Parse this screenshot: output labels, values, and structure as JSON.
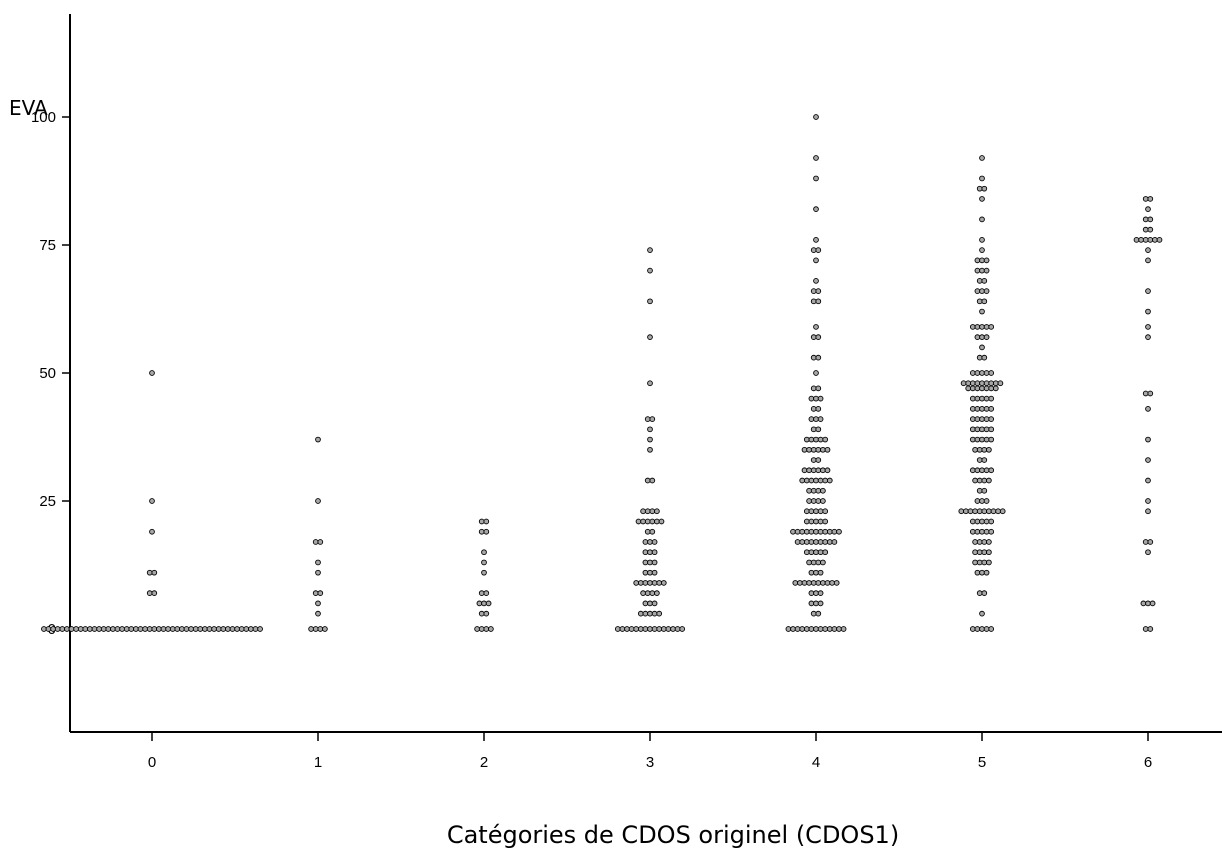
{
  "chart_data": {
    "type": "scatter",
    "subtype": "dot-plot",
    "title": "",
    "xlabel": "Catégories de CDOS originel (CDOS1)",
    "ylabel": "EVA",
    "categories": [
      "0",
      "1",
      "2",
      "3",
      "4",
      "5",
      "6"
    ],
    "x_ticks": [
      "0",
      "1",
      "2",
      "3",
      "4",
      "5",
      "6"
    ],
    "y_ticks": [
      "0",
      "25",
      "50",
      "75",
      "100"
    ],
    "xlim": [
      -0.5,
      6.5
    ],
    "ylim": [
      -20,
      120
    ],
    "grid": false,
    "legend": "none",
    "marker_color": "#a8a8a8",
    "marker_edge": "#000000",
    "points": [
      {
        "category": 0,
        "values": [
          0,
          0,
          0,
          0,
          0,
          0,
          0,
          0,
          0,
          0,
          0,
          0,
          0,
          0,
          0,
          0,
          0,
          0,
          0,
          0,
          0,
          0,
          0,
          0,
          0,
          0,
          0,
          0,
          0,
          0,
          0,
          0,
          0,
          0,
          0,
          0,
          0,
          0,
          0,
          0,
          0,
          0,
          0,
          0,
          0,
          0,
          0,
          0,
          7,
          7,
          11,
          11,
          19,
          25,
          50
        ]
      },
      {
        "category": 1,
        "values": [
          0,
          0,
          0,
          0,
          3,
          5,
          7,
          7,
          11,
          13,
          17,
          17,
          25,
          37
        ]
      },
      {
        "category": 2,
        "values": [
          0,
          0,
          0,
          0,
          3,
          3,
          5,
          5,
          5,
          7,
          7,
          11,
          13,
          15,
          19,
          19,
          21,
          21
        ]
      },
      {
        "category": 3,
        "values": [
          0,
          0,
          0,
          0,
          0,
          0,
          0,
          0,
          0,
          0,
          0,
          0,
          0,
          0,
          0,
          3,
          3,
          3,
          3,
          3,
          5,
          5,
          5,
          7,
          7,
          7,
          7,
          9,
          9,
          9,
          9,
          9,
          9,
          9,
          11,
          11,
          11,
          13,
          13,
          13,
          15,
          15,
          15,
          17,
          17,
          17,
          19,
          19,
          21,
          21,
          21,
          21,
          21,
          21,
          23,
          23,
          23,
          23,
          29,
          29,
          35,
          37,
          39,
          41,
          41,
          48,
          57,
          64,
          70,
          74
        ]
      },
      {
        "category": 4,
        "values": [
          0,
          0,
          0,
          0,
          0,
          0,
          0,
          0,
          0,
          0,
          0,
          0,
          0,
          3,
          3,
          5,
          5,
          5,
          7,
          7,
          7,
          9,
          9,
          9,
          9,
          9,
          9,
          9,
          9,
          9,
          9,
          11,
          11,
          11,
          13,
          13,
          13,
          13,
          15,
          15,
          15,
          15,
          15,
          17,
          17,
          17,
          17,
          17,
          17,
          17,
          17,
          17,
          19,
          19,
          19,
          19,
          19,
          19,
          19,
          19,
          19,
          19,
          19,
          21,
          21,
          21,
          21,
          21,
          23,
          23,
          23,
          23,
          23,
          25,
          25,
          25,
          25,
          27,
          27,
          27,
          27,
          29,
          29,
          29,
          29,
          29,
          29,
          29,
          31,
          31,
          31,
          31,
          31,
          31,
          33,
          33,
          35,
          35,
          35,
          35,
          35,
          35,
          37,
          37,
          37,
          37,
          37,
          39,
          39,
          41,
          41,
          41,
          43,
          43,
          45,
          45,
          45,
          47,
          47,
          50,
          53,
          53,
          57,
          57,
          59,
          64,
          64,
          66,
          66,
          68,
          72,
          74,
          74,
          76,
          82,
          88,
          92,
          100
        ]
      },
      {
        "category": 5,
        "values": [
          0,
          0,
          0,
          0,
          0,
          3,
          7,
          7,
          11,
          11,
          11,
          13,
          13,
          13,
          13,
          15,
          15,
          15,
          15,
          17,
          17,
          17,
          17,
          19,
          19,
          19,
          19,
          19,
          21,
          21,
          21,
          21,
          21,
          23,
          23,
          23,
          23,
          23,
          23,
          23,
          23,
          23,
          23,
          25,
          25,
          25,
          27,
          27,
          29,
          29,
          29,
          29,
          31,
          31,
          31,
          31,
          31,
          33,
          33,
          35,
          35,
          35,
          35,
          37,
          37,
          37,
          37,
          37,
          39,
          39,
          39,
          39,
          39,
          41,
          41,
          41,
          41,
          41,
          43,
          43,
          43,
          43,
          43,
          45,
          45,
          45,
          45,
          45,
          47,
          47,
          47,
          47,
          47,
          47,
          47,
          48,
          48,
          48,
          48,
          48,
          48,
          48,
          48,
          48,
          50,
          50,
          50,
          50,
          50,
          53,
          53,
          55,
          57,
          57,
          57,
          59,
          59,
          59,
          59,
          59,
          62,
          64,
          64,
          66,
          66,
          66,
          68,
          68,
          70,
          70,
          70,
          72,
          72,
          72,
          74,
          76,
          80,
          84,
          86,
          86,
          88,
          92
        ]
      },
      {
        "category": 6,
        "values": [
          0,
          0,
          5,
          5,
          5,
          15,
          17,
          17,
          23,
          25,
          29,
          33,
          37,
          43,
          46,
          46,
          57,
          59,
          62,
          66,
          72,
          74,
          76,
          76,
          76,
          76,
          76,
          76,
          78,
          78,
          80,
          80,
          82,
          84,
          84
        ]
      }
    ]
  }
}
